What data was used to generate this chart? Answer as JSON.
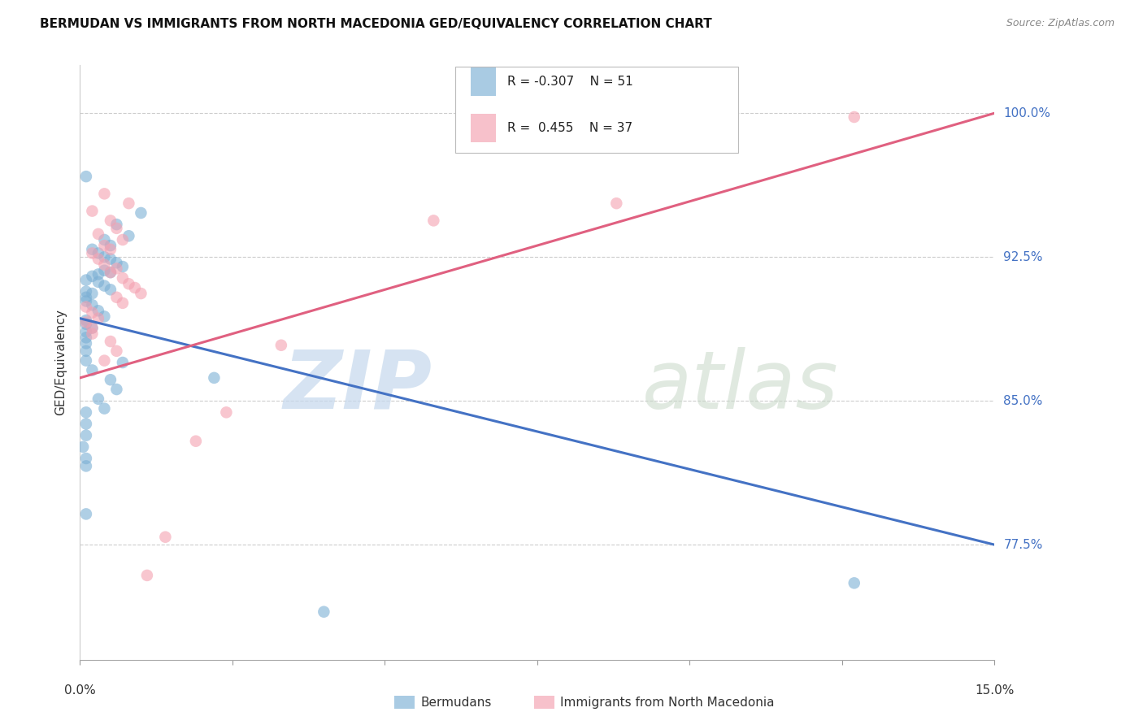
{
  "title": "BERMUDAN VS IMMIGRANTS FROM NORTH MACEDONIA GED/EQUIVALENCY CORRELATION CHART",
  "source": "Source: ZipAtlas.com",
  "ylabel": "GED/Equivalency",
  "ytick_labels": [
    "100.0%",
    "92.5%",
    "85.0%",
    "77.5%"
  ],
  "ytick_values": [
    1.0,
    0.925,
    0.85,
    0.775
  ],
  "xmin": 0.0,
  "xmax": 0.15,
  "ymin": 0.715,
  "ymax": 1.025,
  "legend_blue_r": "-0.307",
  "legend_blue_n": "51",
  "legend_pink_r": "0.455",
  "legend_pink_n": "37",
  "blue_color": "#7BAFD4",
  "pink_color": "#F4A0B0",
  "blue_line_color": "#4472C4",
  "pink_line_color": "#E06080",
  "watermark_zip": "ZIP",
  "watermark_atlas": "atlas",
  "blue_scatter_x": [
    0.001,
    0.01,
    0.006,
    0.008,
    0.004,
    0.005,
    0.002,
    0.003,
    0.004,
    0.005,
    0.006,
    0.007,
    0.004,
    0.005,
    0.003,
    0.002,
    0.001,
    0.003,
    0.004,
    0.005,
    0.001,
    0.002,
    0.001,
    0.001,
    0.002,
    0.003,
    0.004,
    0.001,
    0.001,
    0.002,
    0.001,
    0.001,
    0.001,
    0.001,
    0.001,
    0.002,
    0.005,
    0.006,
    0.003,
    0.004,
    0.001,
    0.001,
    0.001,
    0.0005,
    0.001,
    0.001,
    0.001,
    0.127,
    0.04,
    0.022,
    0.007
  ],
  "blue_scatter_y": [
    0.967,
    0.948,
    0.942,
    0.936,
    0.934,
    0.931,
    0.929,
    0.927,
    0.925,
    0.924,
    0.922,
    0.92,
    0.918,
    0.917,
    0.916,
    0.915,
    0.913,
    0.912,
    0.91,
    0.908,
    0.907,
    0.906,
    0.904,
    0.902,
    0.9,
    0.897,
    0.894,
    0.892,
    0.89,
    0.888,
    0.886,
    0.883,
    0.88,
    0.876,
    0.871,
    0.866,
    0.861,
    0.856,
    0.851,
    0.846,
    0.844,
    0.838,
    0.832,
    0.826,
    0.82,
    0.816,
    0.791,
    0.755,
    0.74,
    0.862,
    0.87
  ],
  "pink_scatter_x": [
    0.004,
    0.008,
    0.002,
    0.005,
    0.006,
    0.003,
    0.007,
    0.004,
    0.005,
    0.002,
    0.003,
    0.004,
    0.006,
    0.005,
    0.007,
    0.008,
    0.009,
    0.01,
    0.006,
    0.007,
    0.001,
    0.002,
    0.003,
    0.001,
    0.002,
    0.002,
    0.005,
    0.006,
    0.004,
    0.127,
    0.088,
    0.058,
    0.033,
    0.024,
    0.019,
    0.014,
    0.011
  ],
  "pink_scatter_y": [
    0.958,
    0.953,
    0.949,
    0.944,
    0.94,
    0.937,
    0.934,
    0.931,
    0.929,
    0.927,
    0.924,
    0.921,
    0.919,
    0.917,
    0.914,
    0.911,
    0.909,
    0.906,
    0.904,
    0.901,
    0.899,
    0.896,
    0.893,
    0.891,
    0.888,
    0.885,
    0.881,
    0.876,
    0.871,
    0.998,
    0.953,
    0.944,
    0.879,
    0.844,
    0.829,
    0.779,
    0.759
  ],
  "blue_trend_x": [
    0.0,
    0.15
  ],
  "blue_trend_y": [
    0.893,
    0.775
  ],
  "pink_trend_x": [
    0.0,
    0.15
  ],
  "pink_trend_y": [
    0.862,
    1.0
  ],
  "xtick_positions": [
    0.0,
    0.025,
    0.05,
    0.075,
    0.1,
    0.125,
    0.15
  ]
}
